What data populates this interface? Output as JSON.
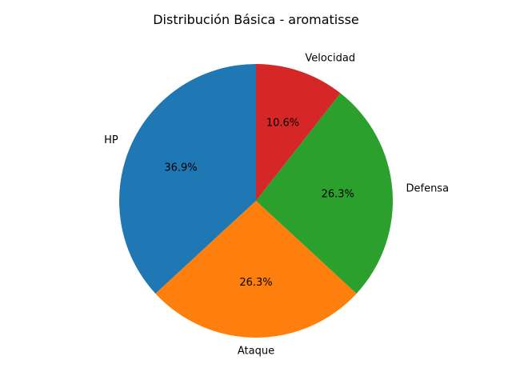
{
  "chart_data": {
    "type": "pie",
    "title": "Distribución Básica - aromatisse",
    "categories": [
      "HP",
      "Ataque",
      "Defensa",
      "Velocidad"
    ],
    "values": [
      36.9,
      26.3,
      26.3,
      10.6
    ],
    "percent_labels": [
      "36.9%",
      "26.3%",
      "26.3%",
      "10.6%"
    ],
    "colors": [
      "#1f77b4",
      "#ff7f0e",
      "#2ca02c",
      "#d62728"
    ],
    "start_angle_deg": 90,
    "direction": "counterclockwise"
  }
}
